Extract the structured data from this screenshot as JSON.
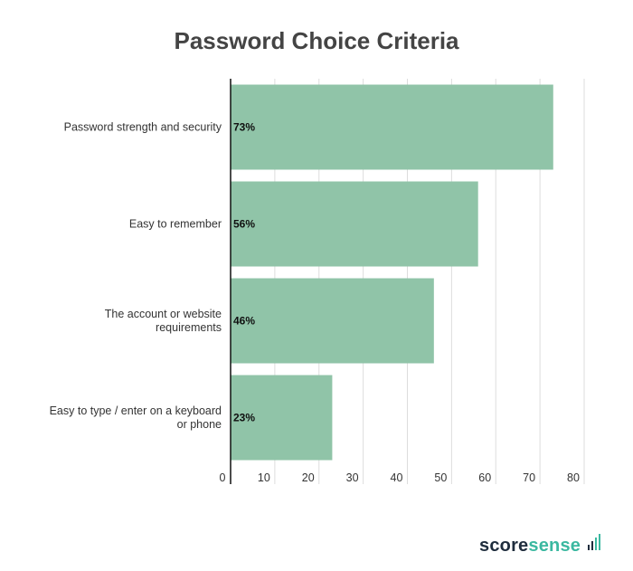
{
  "chart_data": {
    "type": "bar",
    "orientation": "horizontal",
    "title": "Password Choice Criteria",
    "categories": [
      [
        "Password strength and security"
      ],
      [
        "Easy to remember"
      ],
      [
        "The account or website",
        "requirements"
      ],
      [
        "Easy to type / enter on a keyboard",
        "or phone"
      ]
    ],
    "values": [
      73,
      56,
      46,
      23
    ],
    "value_labels": [
      "73%",
      "56%",
      "46%",
      "23%"
    ],
    "xlim": [
      0,
      80
    ],
    "xticks": [
      0,
      10,
      20,
      30,
      40,
      50,
      60,
      70,
      80
    ],
    "grid": true,
    "bar_color": "#90c4a8",
    "grid_color": "#dddddd",
    "axis_color": "#111111"
  },
  "branding": {
    "part1": "score",
    "part2": "sense",
    "primary_color": "#1f2d3d",
    "accent_color": "#3bb8a0"
  }
}
